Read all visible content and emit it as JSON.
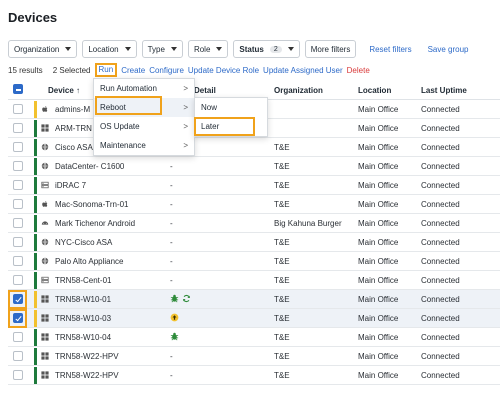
{
  "page": {
    "title": "Devices"
  },
  "filters": {
    "organization": "Organization",
    "location": "Location",
    "type": "Type",
    "role": "Role",
    "status": "Status",
    "status_count": "2",
    "more": "More filters",
    "reset": "Reset filters",
    "save": "Save group"
  },
  "actions": {
    "results": "15 results",
    "selected": "2 Selected",
    "run": "Run",
    "create": "Create",
    "configure": "Configure",
    "update_role": "Update Device Role",
    "update_user": "Update Assigned User",
    "delete": "Delete"
  },
  "table": {
    "headers": {
      "device": "Device",
      "detail": "Detail",
      "organization": "Organization",
      "location": "Location",
      "uptime": "Last Uptime"
    },
    "rows": [
      {
        "name": "admins-M",
        "icon": "apple-icon",
        "stripe": "#f2c12e",
        "detail": "",
        "org": "",
        "loc": "Main Office",
        "uptime": "Connected",
        "checked": false
      },
      {
        "name": "ARM-TRN",
        "icon": "windows-icon",
        "stripe": "#1e7a3c",
        "detail": "",
        "org": "",
        "loc": "Main Office",
        "uptime": "Connected",
        "checked": false
      },
      {
        "name": "Cisco ASA",
        "icon": "globe-icon",
        "stripe": "#1e7a3c",
        "detail": "",
        "org": "T&E",
        "loc": "Main Office",
        "uptime": "Connected",
        "checked": false
      },
      {
        "name": "DataCenter- C1600",
        "icon": "globe-icon",
        "stripe": "#1e7a3c",
        "detail": "-",
        "org": "T&E",
        "loc": "Main Office",
        "uptime": "Connected",
        "checked": false
      },
      {
        "name": "iDRAC 7",
        "icon": "server-icon",
        "stripe": "#1e7a3c",
        "detail": "-",
        "org": "T&E",
        "loc": "Main Office",
        "uptime": "Connected",
        "checked": false
      },
      {
        "name": "Mac-Sonoma-Trn-01",
        "icon": "apple-icon",
        "stripe": "#1e7a3c",
        "detail": "-",
        "org": "T&E",
        "loc": "Main Office",
        "uptime": "Connected",
        "checked": false
      },
      {
        "name": "Mark Tichenor Android",
        "icon": "android-icon",
        "stripe": "#1e7a3c",
        "detail": "-",
        "org": "Big Kahuna Burger",
        "loc": "Main Office",
        "uptime": "Connected",
        "checked": false
      },
      {
        "name": "NYC-Cisco ASA",
        "icon": "globe-icon",
        "stripe": "#1e7a3c",
        "detail": "-",
        "org": "T&E",
        "loc": "Main Office",
        "uptime": "Connected",
        "checked": false
      },
      {
        "name": "Palo Alto Appliance",
        "icon": "globe-icon",
        "stripe": "#1e7a3c",
        "detail": "-",
        "org": "T&E",
        "loc": "Main Office",
        "uptime": "Connected",
        "checked": false
      },
      {
        "name": "TRN58-Cent-01",
        "icon": "server-icon",
        "stripe": "#1e7a3c",
        "detail": "-",
        "org": "T&E",
        "loc": "Main Office",
        "uptime": "Connected",
        "checked": false
      },
      {
        "name": "TRN58-W10-01",
        "icon": "windows-icon",
        "stripe": "#f2c12e",
        "detail": "",
        "org": "T&E",
        "loc": "Main Office",
        "uptime": "Connected",
        "checked": true
      },
      {
        "name": "TRN58-W10-03",
        "icon": "windows-icon",
        "stripe": "#f2c12e",
        "detail": "",
        "org": "T&E",
        "loc": "Main Office",
        "uptime": "Connected",
        "checked": true
      },
      {
        "name": "TRN58-W10-04",
        "icon": "windows-icon",
        "stripe": "#1e7a3c",
        "detail": "",
        "org": "T&E",
        "loc": "Main Office",
        "uptime": "Connected",
        "checked": false
      },
      {
        "name": "TRN58-W22-HPV",
        "icon": "windows-icon",
        "stripe": "#1e7a3c",
        "detail": "-",
        "org": "T&E",
        "loc": "Main Office",
        "uptime": "Connected",
        "checked": false
      },
      {
        "name": "TRN58-W22-HPV",
        "icon": "windows-icon",
        "stripe": "#1e7a3c",
        "detail": "-",
        "org": "T&E",
        "loc": "Main Office",
        "uptime": "Connected",
        "checked": false
      }
    ]
  },
  "run_menu": {
    "items": [
      "Run Automation",
      "Reboot",
      "OS Update",
      "Maintenance"
    ]
  },
  "reboot_menu": {
    "items": [
      "Now",
      "Later"
    ]
  },
  "colors": {
    "accent": "#2d6ac8",
    "highlight": "#f0a21b",
    "online": "#1e7a3c",
    "warning": "#f2c12e"
  }
}
